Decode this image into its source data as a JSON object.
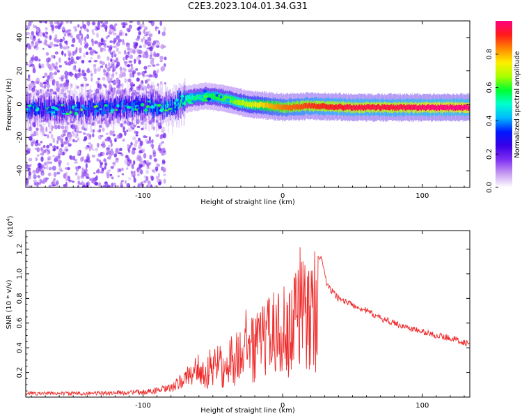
{
  "title": "C2E3.2023.104.01.34.G31",
  "chart_data": [
    {
      "type": "heatmap",
      "name": "spectrogram",
      "xlabel": "Height of straight line (km)",
      "ylabel": "Frequency (Hz)",
      "xlim": [
        -184,
        134
      ],
      "ylim": [
        -50,
        50
      ],
      "xticks": [
        -100,
        0,
        100
      ],
      "yticks": [
        -40,
        -20,
        0,
        20,
        40
      ],
      "colorbar": {
        "label": "Normalized spectral amplitude",
        "range": [
          0,
          1
        ],
        "ticks": [
          "0.0",
          "0.2",
          "0.4",
          "0.6",
          "0.8"
        ],
        "colors": [
          "#ffffff",
          "#c79bf0",
          "#7f2ff2",
          "#3a00e6",
          "#0018ff",
          "#00b8ff",
          "#00ffd0",
          "#00ff30",
          "#aaff00",
          "#ffee00",
          "#ff8800",
          "#ff1a1a",
          "#ff007f"
        ]
      },
      "ridge": [
        {
          "x": -184,
          "freq": -3,
          "amp": 0.35
        },
        {
          "x": -150,
          "freq": -3,
          "amp": 0.35
        },
        {
          "x": -120,
          "freq": -2,
          "amp": 0.35
        },
        {
          "x": -100,
          "freq": -1,
          "amp": 0.4
        },
        {
          "x": -80,
          "freq": -2,
          "amp": 0.45
        },
        {
          "x": -70,
          "freq": 3,
          "amp": 0.5
        },
        {
          "x": -55,
          "freq": 5,
          "amp": 0.55
        },
        {
          "x": -45,
          "freq": 4,
          "amp": 0.6
        },
        {
          "x": -35,
          "freq": 2,
          "amp": 0.65
        },
        {
          "x": -25,
          "freq": 0,
          "amp": 0.7
        },
        {
          "x": -10,
          "freq": -1,
          "amp": 0.8
        },
        {
          "x": 0,
          "freq": -2,
          "amp": 0.85
        },
        {
          "x": 20,
          "freq": -1,
          "amp": 0.9
        },
        {
          "x": 50,
          "freq": -2,
          "amp": 0.95
        },
        {
          "x": 80,
          "freq": -2,
          "amp": 0.95
        },
        {
          "x": 110,
          "freq": -2,
          "amp": 1.0
        },
        {
          "x": 134,
          "freq": -2,
          "amp": 1.0
        }
      ],
      "noise_region": {
        "x_from": -184,
        "x_to": -84,
        "freq_spread": 50
      }
    },
    {
      "type": "line",
      "name": "snr",
      "xlabel": "Height of straight line (km)",
      "ylabel": "SNR (10 * v/v)",
      "y_multiplier": "(x10",
      "y_multiplier_exp": "4",
      "y_multiplier_close": ")",
      "xlim": [
        -184,
        134
      ],
      "ylim": [
        0,
        1.35
      ],
      "xticks": [
        -100,
        0,
        100
      ],
      "yticks": [
        0.2,
        0.4,
        0.6,
        0.8,
        1.0,
        1.2
      ],
      "ytick_labels": [
        "0.2",
        "0.4",
        "0.6",
        "0.8",
        "1.0",
        "1.2"
      ],
      "color": "#ee2a2a",
      "envelope_x": [
        -184,
        -140,
        -100,
        -80,
        -70,
        -60,
        -50,
        -40,
        -30,
        -20,
        -10,
        0,
        5,
        10,
        15,
        20,
        28,
        32,
        40,
        50,
        60,
        70,
        80,
        90,
        100,
        110,
        120,
        134
      ],
      "envelope_y": [
        0.03,
        0.03,
        0.04,
        0.07,
        0.15,
        0.25,
        0.38,
        0.48,
        0.58,
        0.68,
        0.82,
        0.95,
        1.02,
        1.1,
        1.12,
        1.13,
        1.12,
        0.9,
        0.8,
        0.75,
        0.7,
        0.64,
        0.6,
        0.56,
        0.53,
        0.5,
        0.48,
        0.43
      ],
      "spike_region": [
        -60,
        25
      ]
    }
  ]
}
